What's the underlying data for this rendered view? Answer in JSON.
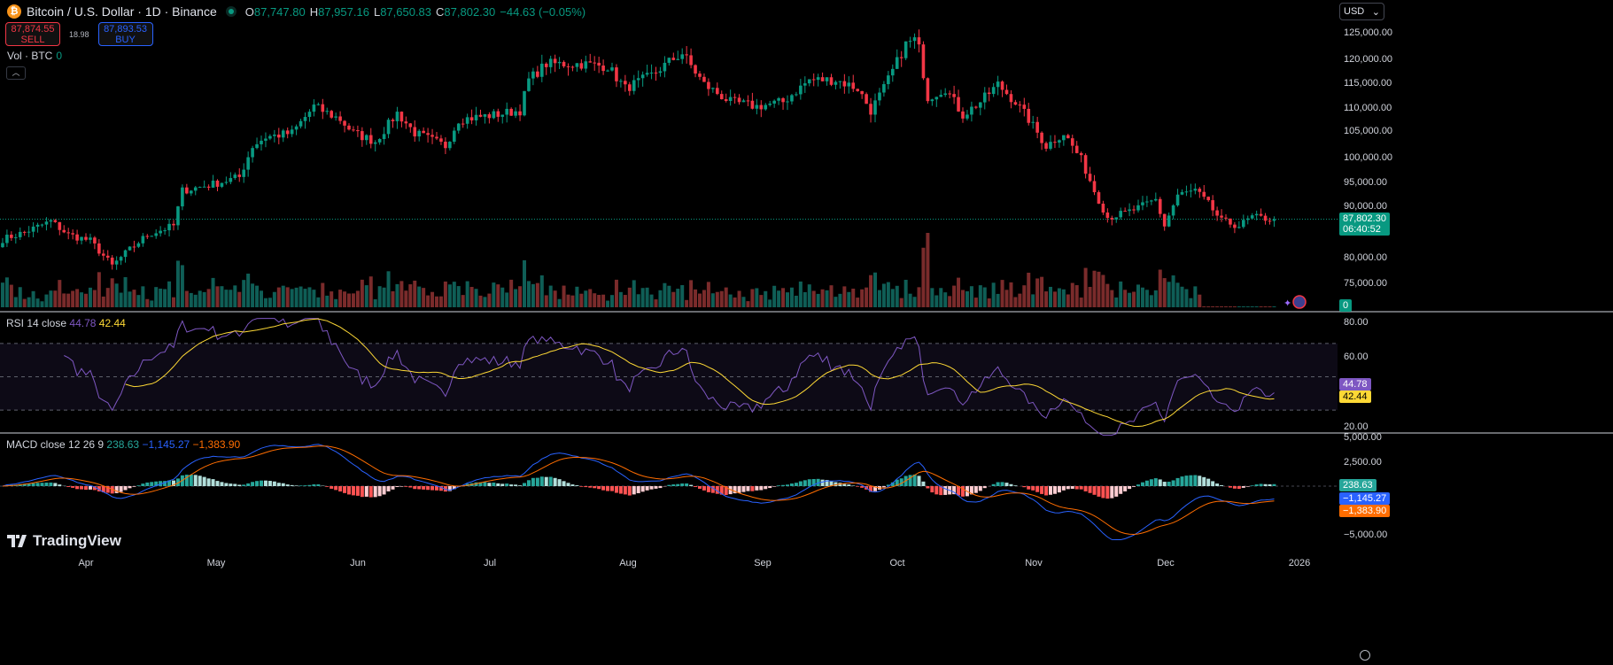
{
  "header": {
    "symbol_icon": "bitcoin-icon",
    "title": "Bitcoin / U.S. Dollar · 1D · Binance",
    "o_label": "O",
    "o": "87,747.80",
    "h_label": "H",
    "h": "87,957.16",
    "l_label": "L",
    "l": "87,650.83",
    "c_label": "C",
    "c": "87,802.30",
    "change": "−44.63 (−0.05%)"
  },
  "trade": {
    "sell_price": "87,874.55",
    "sell_label": "SELL",
    "spread": "18.98",
    "buy_price": "87,893.53",
    "buy_label": "BUY"
  },
  "volume": {
    "label": "Vol · BTC",
    "value": "0",
    "axis_tag": "0"
  },
  "rsi": {
    "label": "RSI 14 close",
    "value": "44.78",
    "ma": "42.44",
    "ticks": [
      "80.00",
      "60.00",
      "20.00"
    ]
  },
  "macd": {
    "label": "MACD close 12 26 9",
    "hist": "238.63",
    "macd": "−1,145.27",
    "signal": "−1,383.90",
    "ticks": [
      "5,000.00",
      "2,500.00",
      "−5,000.00"
    ]
  },
  "currency": "USD",
  "price_axis": [
    "125,000.00",
    "120,000.00",
    "115,000.00",
    "110,000.00",
    "105,000.00",
    "100,000.00",
    "95,000.00",
    "90,000.00",
    "80,000.00",
    "75,000.00"
  ],
  "last_price": {
    "price": "87,802.30",
    "countdown": "06:40:52"
  },
  "time_axis": [
    "Apr",
    "May",
    "Jun",
    "Jul",
    "Aug",
    "Sep",
    "Oct",
    "Nov",
    "Dec",
    "2026"
  ],
  "brand": "TradingView",
  "colors": {
    "up": "#089981",
    "down": "#f23645",
    "rsi": "#7e57c2",
    "rsi_ma": "#fdd835",
    "macd": "#2962ff",
    "signal": "#ff6d00"
  },
  "chart_data": {
    "type": "candlestick",
    "interval": "1D",
    "price_range": [
      75000,
      125000
    ],
    "close_path": [
      [
        "2025-03-13",
        83800
      ],
      [
        "2025-03-18",
        85200
      ],
      [
        "2025-03-24",
        87400
      ],
      [
        "2025-03-28",
        84700
      ],
      [
        "2025-04-02",
        83500
      ],
      [
        "2025-04-07",
        78500
      ],
      [
        "2025-04-10",
        81000
      ],
      [
        "2025-04-15",
        84700
      ],
      [
        "2025-04-21",
        86500
      ],
      [
        "2025-04-23",
        93500
      ],
      [
        "2025-04-30",
        94800
      ],
      [
        "2025-05-06",
        96200
      ],
      [
        "2025-05-09",
        102400
      ],
      [
        "2025-05-12",
        104200
      ],
      [
        "2025-05-18",
        105000
      ],
      [
        "2025-05-23",
        110300
      ],
      [
        "2025-05-29",
        107700
      ],
      [
        "2025-06-01",
        105000
      ],
      [
        "2025-06-06",
        103300
      ],
      [
        "2025-06-11",
        109000
      ],
      [
        "2025-06-15",
        105000
      ],
      [
        "2025-06-22",
        102400
      ],
      [
        "2025-06-25",
        107700
      ],
      [
        "2025-07-03",
        108600
      ],
      [
        "2025-07-09",
        109500
      ],
      [
        "2025-07-11",
        115600
      ],
      [
        "2025-07-15",
        118800
      ],
      [
        "2025-07-23",
        118800
      ],
      [
        "2025-07-29",
        118300
      ],
      [
        "2025-08-02",
        113900
      ],
      [
        "2025-08-08",
        116500
      ],
      [
        "2025-08-12",
        119200
      ],
      [
        "2025-08-15",
        120900
      ],
      [
        "2025-08-20",
        114700
      ],
      [
        "2025-08-26",
        111200
      ],
      [
        "2025-09-01",
        110300
      ],
      [
        "2025-09-07",
        111200
      ],
      [
        "2025-09-13",
        115600
      ],
      [
        "2025-09-19",
        115600
      ],
      [
        "2025-09-24",
        113900
      ],
      [
        "2025-09-27",
        109500
      ],
      [
        "2025-09-30",
        113900
      ],
      [
        "2025-10-02",
        117400
      ],
      [
        "2025-10-05",
        122700
      ],
      [
        "2025-10-07",
        123600
      ],
      [
        "2025-10-08",
        121800
      ],
      [
        "2025-10-10",
        112100
      ],
      [
        "2025-10-14",
        113900
      ],
      [
        "2025-10-18",
        108600
      ],
      [
        "2025-10-22",
        111200
      ],
      [
        "2025-10-26",
        114700
      ],
      [
        "2025-10-30",
        111200
      ],
      [
        "2025-11-02",
        107700
      ],
      [
        "2025-11-06",
        102400
      ],
      [
        "2025-11-10",
        105000
      ],
      [
        "2025-11-14",
        99700
      ],
      [
        "2025-11-17",
        93500
      ],
      [
        "2025-11-20",
        88200
      ],
      [
        "2025-11-24",
        89000
      ],
      [
        "2025-11-27",
        90000
      ],
      [
        "2025-12-01",
        91700
      ],
      [
        "2025-12-03",
        86500
      ],
      [
        "2025-12-06",
        92600
      ],
      [
        "2025-12-10",
        93500
      ],
      [
        "2025-12-13",
        90800
      ],
      [
        "2025-12-16",
        87400
      ],
      [
        "2025-12-20",
        86500
      ],
      [
        "2025-12-23",
        88200
      ],
      [
        "2025-12-28",
        87802.3
      ]
    ],
    "rsi_range": [
      20,
      80
    ],
    "rsi_bands": [
      30,
      50,
      70
    ],
    "macd_range": [
      -5000,
      5000
    ]
  }
}
